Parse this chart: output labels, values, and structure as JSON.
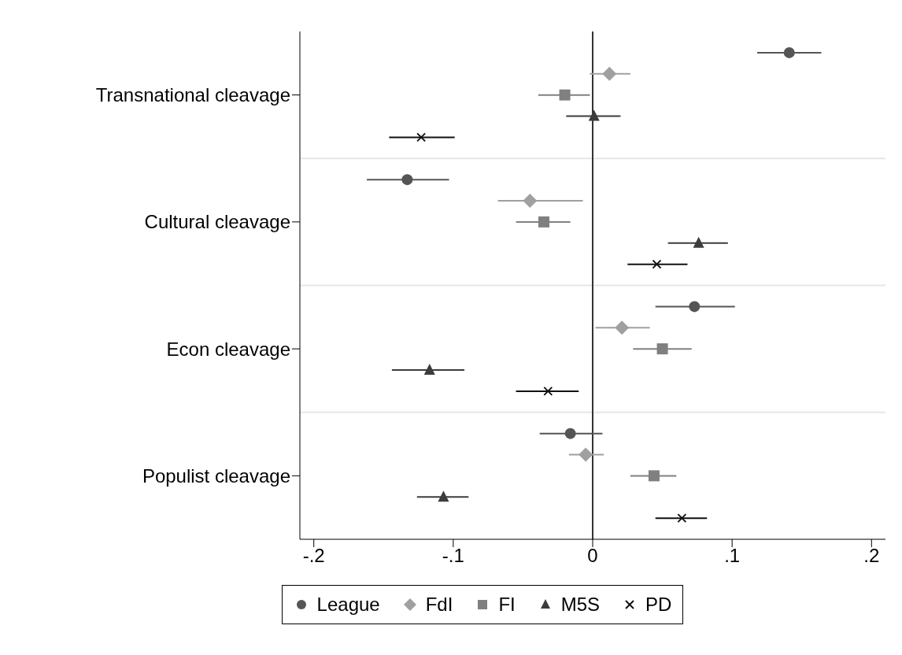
{
  "chart_data": {
    "type": "scatter",
    "orientation": "horizontal",
    "categories": [
      "Transnational cleavage",
      "Cultural cleavage",
      "Econ cleavage",
      "Populist cleavage"
    ],
    "xlim": [
      -0.21,
      0.21
    ],
    "xticks": [
      {
        "value": -0.2,
        "label": "-.2"
      },
      {
        "value": -0.1,
        "label": "-.1"
      },
      0,
      {
        "value": 0.1,
        "label": ".1"
      },
      {
        "value": 0.2,
        "label": ".2"
      }
    ],
    "grid": "y",
    "legend": "bottom",
    "ref_lines": [
      {
        "axis": "x",
        "value": 0,
        "color": "#333333"
      }
    ],
    "series": [
      {
        "name": "League",
        "color": "#555555",
        "marker": "circle",
        "values": [
          0.141,
          -0.133,
          0.073,
          -0.016
        ],
        "errors": [
          [
            0.118,
            0.164
          ],
          [
            -0.162,
            -0.103
          ],
          [
            0.045,
            0.102
          ],
          [
            -0.038,
            0.007
          ]
        ]
      },
      {
        "name": "FdI",
        "color": "#a0a0a0",
        "marker": "diamond",
        "values": [
          0.012,
          -0.045,
          0.021,
          -0.005
        ],
        "errors": [
          [
            -0.002,
            0.027
          ],
          [
            -0.068,
            -0.007
          ],
          [
            0.002,
            0.041
          ],
          [
            -0.017,
            0.008
          ]
        ]
      },
      {
        "name": "FI",
        "color": "#808080",
        "marker": "square",
        "values": [
          -0.02,
          -0.035,
          0.05,
          0.044
        ],
        "errors": [
          [
            -0.039,
            -0.002
          ],
          [
            -0.055,
            -0.016
          ],
          [
            0.029,
            0.071
          ],
          [
            0.027,
            0.06
          ]
        ]
      },
      {
        "name": "M5S",
        "color": "#3c3c3c",
        "marker": "triangle",
        "values": [
          0.001,
          0.076,
          -0.117,
          -0.107
        ],
        "errors": [
          [
            -0.019,
            0.02
          ],
          [
            0.054,
            0.097
          ],
          [
            -0.144,
            -0.092
          ],
          [
            -0.126,
            -0.089
          ]
        ]
      },
      {
        "name": "PD",
        "color": "#111111",
        "marker": "cross",
        "values": [
          -0.123,
          0.046,
          -0.032,
          0.064
        ],
        "errors": [
          [
            -0.146,
            -0.099
          ],
          [
            0.025,
            0.068
          ],
          [
            -0.055,
            -0.01
          ],
          [
            0.045,
            0.082
          ]
        ]
      }
    ]
  }
}
